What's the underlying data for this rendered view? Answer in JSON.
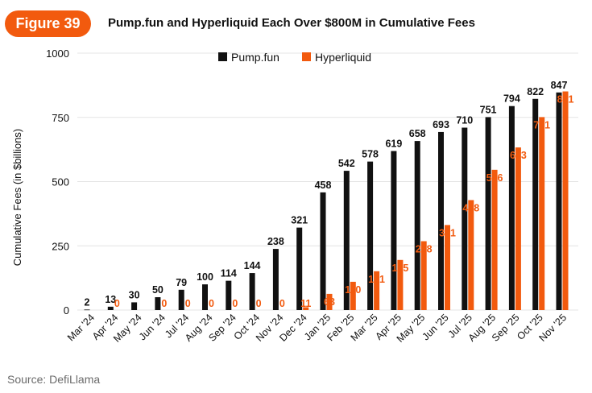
{
  "header": {
    "badge": "Figure 39",
    "title": "Pump.fun and Hyperliquid Each Over $800M in Cumulative Fees"
  },
  "footer": {
    "source": "Source: DefiLlama"
  },
  "colors": {
    "pump": "#111111",
    "hyper": "#f25a0e",
    "grid": "#e4e4e4"
  },
  "chart_data": {
    "type": "bar",
    "title": "Pump.fun and Hyperliquid Each Over $800M in Cumulative Fees",
    "xlabel": "",
    "ylabel": "Cumulative Fees (in $billions)",
    "ylim": [
      0,
      1000
    ],
    "yticks": [
      0,
      250,
      500,
      750,
      1000
    ],
    "grid": true,
    "legend": "top-center",
    "categories": [
      "Mar '24",
      "Apr '24",
      "May '24",
      "Jun '24",
      "Jul '24",
      "Aug '24",
      "Sep '24",
      "Oct '24",
      "Nov '24",
      "Dec '24",
      "Jan '25",
      "Feb '25",
      "Mar '25",
      "Apr '25",
      "May '25",
      "Jun '25",
      "Jul '25",
      "Aug '25",
      "Sep '25",
      "Oct '25",
      "Nov '25"
    ],
    "series": [
      {
        "name": "Pump.fun",
        "values": [
          2,
          13,
          30,
          50,
          79,
          100,
          114,
          144,
          238,
          321,
          458,
          542,
          578,
          619,
          658,
          693,
          710,
          751,
          794,
          822,
          847
        ]
      },
      {
        "name": "Hyperliquid",
        "values": [
          null,
          0,
          null,
          0,
          0,
          0,
          0,
          0,
          0,
          11,
          63,
          110,
          151,
          195,
          268,
          331,
          428,
          546,
          633,
          751,
          851
        ]
      }
    ]
  }
}
